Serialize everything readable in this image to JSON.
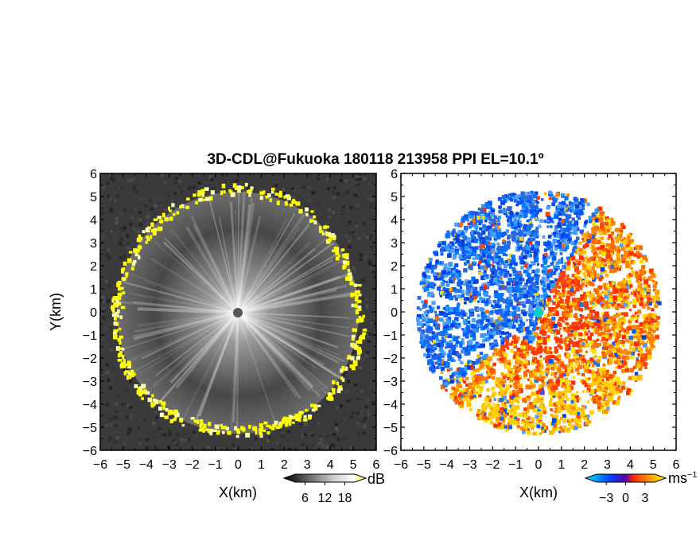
{
  "chart_data": [
    {
      "type": "heatmap",
      "title": "3D-CDL@Fukuoka 180118 213958 PPI EL=10.1º",
      "panel": "left",
      "quantity_unit": "dB",
      "xlabel": "X(km)",
      "ylabel": "Y(km)",
      "xlim": [
        -6,
        6
      ],
      "ylim": [
        -6,
        6
      ],
      "xticks": [
        "−6",
        "−5",
        "−4",
        "−3",
        "−2",
        "−1",
        "0",
        "1",
        "2",
        "3",
        "4",
        "5",
        "6"
      ],
      "yticks": [
        "6",
        "5",
        "4",
        "3",
        "2",
        "1",
        "0",
        "−1",
        "−2",
        "−3",
        "−4",
        "−5",
        "−6"
      ],
      "colorbar": {
        "ticks": [
          "6",
          "12",
          "18"
        ],
        "unit": "dB",
        "colors": [
          "#000000",
          "#ffffff",
          "#ffff00"
        ]
      },
      "range_ring_km": 5.3,
      "colors": {
        "background_noise": "#3a3a3a",
        "center_marker": "#555555",
        "ring": "#ffff00"
      }
    },
    {
      "type": "heatmap",
      "panel": "right",
      "quantity_unit": "ms⁻¹",
      "xlabel": "X(km)",
      "xlim": [
        -6,
        6
      ],
      "ylim": [
        -6,
        6
      ],
      "xticks": [
        "−6",
        "−5",
        "−4",
        "−3",
        "−2",
        "−1",
        "0",
        "1",
        "2",
        "3",
        "4",
        "5",
        "6"
      ],
      "yticks": [
        "6",
        "5",
        "4",
        "3",
        "2",
        "1",
        "0",
        "−1",
        "−2",
        "−3",
        "−4",
        "−5",
        "−6"
      ],
      "colorbar": {
        "ticks": [
          "−3",
          "0",
          "3"
        ],
        "unit": "ms",
        "unit_sup": "−1",
        "colors": [
          "#00e5ff",
          "#0044ff",
          "#ff2a00",
          "#ffc800",
          "#ffff00"
        ]
      },
      "colors": {
        "approaching": "#1a5cff",
        "receding": "#ff6600",
        "center_marker": "#00d0d0"
      }
    }
  ]
}
